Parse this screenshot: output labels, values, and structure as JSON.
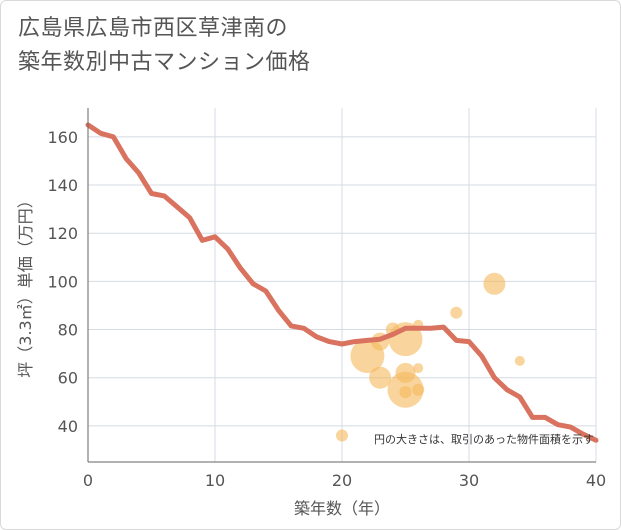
{
  "title_line1": "広島県広島市西区草津南の",
  "title_line2": "築年数別中古マンション価格",
  "chart_data": {
    "type": "scatter",
    "title": "広島県広島市西区草津南の築年数別中古マンション価格",
    "xlabel": "築年数（年）",
    "ylabel": "坪（3.3㎡）単価（万円）",
    "xlim": [
      0,
      40
    ],
    "ylim": [
      25,
      172
    ],
    "xticks": [
      0,
      10,
      20,
      30,
      40
    ],
    "yticks": [
      40,
      60,
      80,
      100,
      120,
      140,
      160
    ],
    "grid": true,
    "note": "円の大きさは、取引のあった物件面積を示す",
    "colors": {
      "line": "#d9725e",
      "bubble": "#f5b85a",
      "grid": "#d4dbe3",
      "axis": "#666666"
    },
    "line_series": {
      "x": [
        0,
        1,
        2,
        3,
        4,
        5,
        6,
        7,
        8,
        9,
        10,
        11,
        12,
        13,
        14,
        15,
        16,
        17,
        18,
        19,
        20,
        21,
        22,
        23,
        24,
        25,
        26,
        27,
        28,
        29,
        30,
        31,
        32,
        33,
        34,
        35,
        36,
        37,
        38,
        39,
        40
      ],
      "y": [
        165,
        161.5,
        160,
        151,
        145,
        136.5,
        135.5,
        131,
        126.5,
        117,
        118.5,
        113.5,
        105.5,
        99,
        96,
        88,
        81.5,
        80.5,
        77,
        75,
        74,
        75,
        75.5,
        76,
        78,
        80.5,
        80.5,
        80.5,
        81,
        75.5,
        75,
        69,
        60,
        55,
        52,
        43.5,
        43.5,
        40.5,
        39.5,
        36.5,
        34
      ]
    },
    "bubbles": [
      {
        "x": 20,
        "y": 36,
        "size": 6
      },
      {
        "x": 22,
        "y": 69,
        "size": 17
      },
      {
        "x": 23,
        "y": 60,
        "size": 11
      },
      {
        "x": 23,
        "y": 75,
        "size": 9
      },
      {
        "x": 24,
        "y": 80,
        "size": 7
      },
      {
        "x": 25,
        "y": 76,
        "size": 17
      },
      {
        "x": 25,
        "y": 62,
        "size": 10
      },
      {
        "x": 25,
        "y": 55,
        "size": 18
      },
      {
        "x": 25,
        "y": 54,
        "size": 6
      },
      {
        "x": 26,
        "y": 55,
        "size": 6
      },
      {
        "x": 26,
        "y": 64,
        "size": 5
      },
      {
        "x": 26,
        "y": 82,
        "size": 5
      },
      {
        "x": 29,
        "y": 87,
        "size": 6
      },
      {
        "x": 32,
        "y": 99,
        "size": 11
      },
      {
        "x": 34,
        "y": 67,
        "size": 5
      }
    ]
  }
}
